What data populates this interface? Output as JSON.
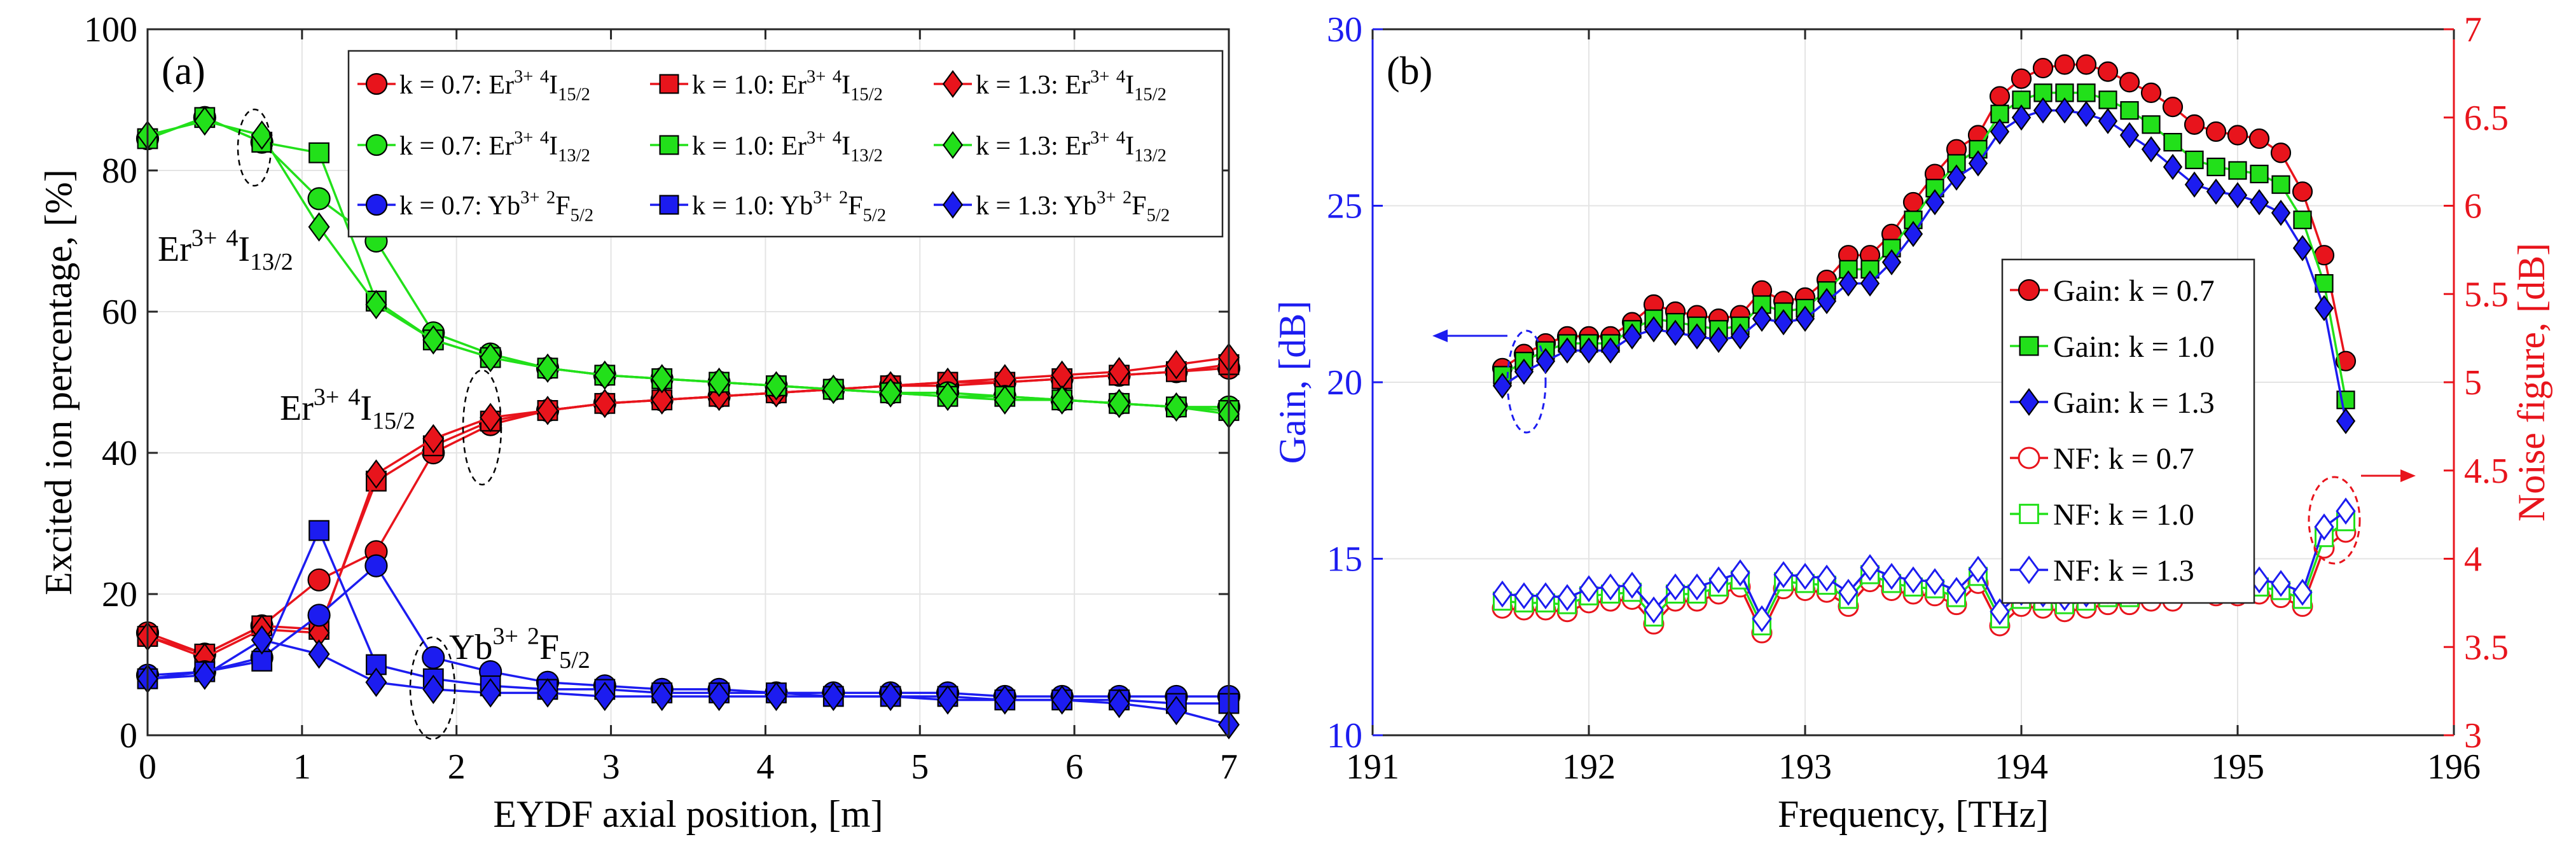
{
  "chart_data": [
    {
      "type": "line",
      "panel_label": "(a)",
      "xlabel": "EYDF axial position, [m]",
      "ylabel": "Excited ion percentage, [%]",
      "xlim": [
        0,
        7
      ],
      "ylim": [
        0,
        100
      ],
      "xticks": [
        0,
        1,
        2,
        3,
        4,
        5,
        6,
        7
      ],
      "yticks": [
        0,
        20,
        40,
        60,
        80,
        100
      ],
      "grid": true,
      "legend_position": "top-right",
      "x": [
        0,
        0.37,
        0.74,
        1.11,
        1.48,
        1.85,
        2.22,
        2.59,
        2.96,
        3.33,
        3.7,
        4.07,
        4.44,
        4.81,
        5.18,
        5.55,
        5.92,
        6.29,
        6.66,
        7.0
      ],
      "series": [
        {
          "name": "k = 0.7: Er3+ 4I15/2",
          "legend": "k = 0.7: Er^{3+} ^{4}I_{15/2}",
          "color": "#e8141c",
          "marker": "circle",
          "values": [
            14.5,
            11.5,
            15.5,
            22,
            26,
            40,
            44,
            46,
            47,
            47.5,
            48,
            48.5,
            49,
            49.5,
            49.5,
            50,
            50.5,
            51,
            51.5,
            52
          ]
        },
        {
          "name": "k = 1.0: Er3+ 4I15/2",
          "legend": "k = 1.0: Er^{3+} ^{4}I_{15/2}",
          "color": "#e8141c",
          "marker": "square",
          "values": [
            14,
            11.5,
            15.5,
            15,
            36,
            41,
            44.5,
            46,
            47,
            47.5,
            48,
            48.5,
            49,
            49.5,
            50,
            50,
            50.5,
            51,
            51.5,
            52.5
          ]
        },
        {
          "name": "k = 1.3: Er3+ 4I15/2",
          "legend": "k = 1.3: Er^{3+} ^{4}I_{15/2}",
          "color": "#e8141c",
          "marker": "diamond",
          "values": [
            14,
            11,
            15,
            14.5,
            37,
            42,
            45,
            46,
            47,
            47.5,
            48,
            48.5,
            49,
            49.5,
            50,
            50.5,
            51,
            51.5,
            52.5,
            53.5
          ]
        },
        {
          "name": "k = 0.7: Er3+ 4I13/2",
          "legend": "k = 0.7: Er^{3+} ^{4}I_{13/2}",
          "color": "#22e01a",
          "marker": "circle",
          "values": [
            84.5,
            87.5,
            84,
            76,
            70,
            57,
            54,
            52,
            51,
            50.5,
            50,
            49.5,
            49,
            48.5,
            48.5,
            48,
            47.5,
            47,
            46.5,
            46.5
          ]
        },
        {
          "name": "k = 1.0: Er3+ 4I13/2",
          "legend": "k = 1.0: Er^{3+} ^{4}I_{13/2}",
          "color": "#22e01a",
          "marker": "square",
          "values": [
            84.5,
            87.5,
            84,
            82.5,
            61.5,
            56,
            53.5,
            52,
            51,
            50.5,
            50,
            49.5,
            49,
            48.5,
            48,
            48,
            47.5,
            47,
            46.5,
            46
          ]
        },
        {
          "name": "k = 1.3: Er3+ 4I13/2",
          "legend": "k = 1.3: Er^{3+} ^{4}I_{13/2}",
          "color": "#22e01a",
          "marker": "diamond",
          "values": [
            85,
            87,
            85,
            72,
            61,
            56,
            53.5,
            52,
            51,
            50.5,
            50,
            49.5,
            49,
            48.5,
            48,
            47.5,
            47.5,
            47,
            46.5,
            45.5
          ]
        },
        {
          "name": "k = 0.7: Yb3+ 2F5/2",
          "legend": "k = 0.7: Yb^{3+} ^{2}F_{5/2}",
          "color": "#1c1cf0",
          "marker": "circle",
          "values": [
            8.5,
            9,
            11,
            17,
            24,
            11,
            9,
            7.5,
            7,
            6.5,
            6.5,
            6,
            6,
            6,
            6,
            5.5,
            5.5,
            5.5,
            5.5,
            5.5
          ]
        },
        {
          "name": "k = 1.0: Yb3+ 2F5/2",
          "legend": "k = 1.0: Yb^{3+} ^{2}F_{5/2}",
          "color": "#1c1cf0",
          "marker": "square",
          "values": [
            8,
            9,
            10.5,
            29,
            10,
            8,
            7,
            6.5,
            6.5,
            6,
            6,
            6,
            5.5,
            5.5,
            5.5,
            5,
            5,
            5,
            4.5,
            4.5
          ]
        },
        {
          "name": "k = 1.3: Yb3+ 2F5/2",
          "legend": "k = 1.3: Yb^{3+} ^{2}F_{5/2}",
          "color": "#1c1cf0",
          "marker": "diamond",
          "values": [
            8,
            8.5,
            13.5,
            11.5,
            7.5,
            6.5,
            6,
            6,
            5.5,
            5.5,
            5.5,
            5.5,
            5.5,
            5.5,
            5,
            5,
            5,
            4.5,
            3.5,
            1.5
          ]
        }
      ],
      "annotations": [
        {
          "text": "Er3+ 4I13/2",
          "parts": [
            {
              "t": "Er"
            },
            {
              "t": "3+",
              "s": "sup"
            },
            {
              "t": " "
            },
            {
              "t": "4",
              "s": "sup"
            },
            {
              "t": "I"
            },
            {
              "t": "13/2",
              "s": "sub"
            }
          ]
        },
        {
          "text": "Er3+ 4I15/2",
          "parts": [
            {
              "t": "Er"
            },
            {
              "t": "3+",
              "s": "sup"
            },
            {
              "t": " "
            },
            {
              "t": "4",
              "s": "sup"
            },
            {
              "t": "I"
            },
            {
              "t": "15/2",
              "s": "sub"
            }
          ]
        },
        {
          "text": "Yb3+ 2F5/2",
          "parts": [
            {
              "t": "Yb"
            },
            {
              "t": "3+",
              "s": "sup"
            },
            {
              "t": " "
            },
            {
              "t": "2",
              "s": "sup"
            },
            {
              "t": "F"
            },
            {
              "t": "5/2",
              "s": "sub"
            }
          ]
        }
      ]
    },
    {
      "type": "line",
      "panel_label": "(b)",
      "xlabel": "Frequency, [THz]",
      "ylabel_left": "Gain, [dB]",
      "ylabel_right": "Noise figure, [dB]",
      "left_axis_color": "#1c1cf0",
      "right_axis_color": "#e8141c",
      "xlim": [
        191,
        196
      ],
      "ylim_left": [
        10,
        30
      ],
      "ylim_right": [
        3,
        7
      ],
      "xticks": [
        191,
        192,
        193,
        194,
        195,
        196
      ],
      "yticks_left": [
        10,
        15,
        20,
        25,
        30
      ],
      "yticks_right": [
        3,
        3.5,
        4,
        4.5,
        5,
        5.5,
        6,
        6.5,
        7
      ],
      "grid": true,
      "legend_position": "center-right",
      "x": [
        191.6,
        191.7,
        191.8,
        191.9,
        192.0,
        192.1,
        192.2,
        192.3,
        192.4,
        192.5,
        192.6,
        192.7,
        192.8,
        192.9,
        193.0,
        193.1,
        193.2,
        193.3,
        193.4,
        193.5,
        193.6,
        193.7,
        193.8,
        193.9,
        194.0,
        194.1,
        194.2,
        194.3,
        194.4,
        194.5,
        194.6,
        194.7,
        194.8,
        194.9,
        195.0,
        195.1,
        195.2,
        195.3,
        195.4,
        195.5
      ],
      "series": [
        {
          "name": "Gain: k = 0.7",
          "axis": "left",
          "color": "#e8141c",
          "marker": "circle",
          "filled": true,
          "values": [
            20.4,
            20.8,
            21.1,
            21.3,
            21.3,
            21.3,
            21.7,
            22.2,
            22.0,
            21.9,
            21.8,
            21.9,
            22.6,
            22.3,
            22.4,
            22.9,
            23.6,
            23.6,
            24.2,
            25.1,
            25.9,
            26.6,
            27.0,
            28.1,
            28.6,
            28.9,
            29.0,
            29.0,
            28.8,
            28.5,
            28.2,
            27.8,
            27.3,
            27.1,
            27.0,
            26.9,
            26.5,
            25.4,
            23.6,
            20.6
          ]
        },
        {
          "name": "Gain: k = 1.0",
          "axis": "left",
          "color": "#22e01a",
          "marker": "square",
          "filled": true,
          "values": [
            20.2,
            20.6,
            20.9,
            21.1,
            21.1,
            21.1,
            21.5,
            21.8,
            21.7,
            21.6,
            21.5,
            21.6,
            22.2,
            22.0,
            22.1,
            22.6,
            23.2,
            23.2,
            23.8,
            24.6,
            25.5,
            26.2,
            26.6,
            27.6,
            28.0,
            28.2,
            28.2,
            28.2,
            28.0,
            27.7,
            27.3,
            26.8,
            26.3,
            26.1,
            26.0,
            25.9,
            25.6,
            24.6,
            22.8,
            19.5
          ]
        },
        {
          "name": "Gain: k = 1.3",
          "axis": "left",
          "color": "#1c1cf0",
          "marker": "diamond",
          "filled": true,
          "values": [
            19.9,
            20.3,
            20.6,
            20.9,
            20.9,
            20.9,
            21.3,
            21.5,
            21.4,
            21.3,
            21.2,
            21.3,
            21.8,
            21.7,
            21.8,
            22.3,
            22.8,
            22.8,
            23.4,
            24.2,
            25.1,
            25.8,
            26.2,
            27.1,
            27.5,
            27.7,
            27.7,
            27.6,
            27.4,
            27.0,
            26.6,
            26.1,
            25.6,
            25.4,
            25.3,
            25.1,
            24.8,
            23.8,
            22.1,
            18.9
          ]
        },
        {
          "name": "NF: k = 0.7",
          "axis": "right",
          "color": "#e8141c",
          "marker": "circle",
          "filled": false,
          "values": [
            3.72,
            3.71,
            3.71,
            3.7,
            3.75,
            3.76,
            3.77,
            3.63,
            3.76,
            3.76,
            3.8,
            3.84,
            3.58,
            3.83,
            3.82,
            3.81,
            3.73,
            3.87,
            3.82,
            3.8,
            3.79,
            3.74,
            3.86,
            3.62,
            3.73,
            3.72,
            3.7,
            3.72,
            3.74,
            3.74,
            3.76,
            3.76,
            3.82,
            3.79,
            3.79,
            3.8,
            3.78,
            3.73,
            4.06,
            4.15
          ]
        },
        {
          "name": "NF: k = 1.0",
          "axis": "right",
          "color": "#22e01a",
          "marker": "square",
          "filled": false,
          "values": [
            3.76,
            3.75,
            3.75,
            3.74,
            3.79,
            3.8,
            3.81,
            3.67,
            3.8,
            3.8,
            3.84,
            3.88,
            3.62,
            3.87,
            3.86,
            3.85,
            3.77,
            3.91,
            3.86,
            3.84,
            3.83,
            3.78,
            3.9,
            3.66,
            3.77,
            3.76,
            3.74,
            3.76,
            3.78,
            3.78,
            3.8,
            3.8,
            3.86,
            3.83,
            3.83,
            3.84,
            3.82,
            3.77,
            4.12,
            4.21
          ]
        },
        {
          "name": "NF: k = 1.3",
          "axis": "right",
          "color": "#1c1cf0",
          "marker": "diamond",
          "filled": false,
          "values": [
            3.8,
            3.79,
            3.79,
            3.78,
            3.83,
            3.84,
            3.85,
            3.71,
            3.84,
            3.84,
            3.88,
            3.92,
            3.66,
            3.91,
            3.9,
            3.89,
            3.81,
            3.95,
            3.9,
            3.88,
            3.87,
            3.82,
            3.94,
            3.7,
            3.81,
            3.8,
            3.78,
            3.8,
            3.82,
            3.82,
            3.84,
            3.84,
            3.9,
            3.87,
            3.87,
            3.88,
            3.86,
            3.81,
            4.18,
            4.27
          ]
        }
      ]
    }
  ]
}
